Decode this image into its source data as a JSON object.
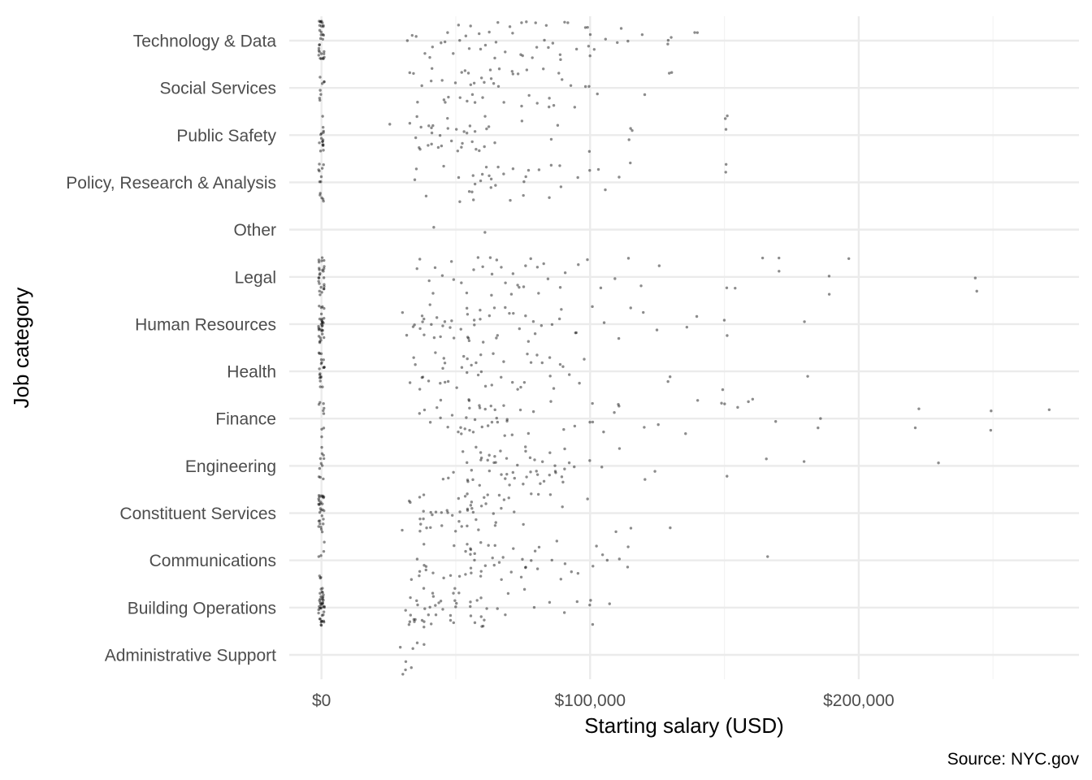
{
  "chart_data": {
    "type": "scatter",
    "title": "",
    "xlabel": "Starting salary (USD)",
    "ylabel": "Job category",
    "caption": "Source: NYC.gov",
    "xlim": [
      -12000,
      282000
    ],
    "x_ticks": [
      {
        "value": 0,
        "label": "$0"
      },
      {
        "value": 100000,
        "label": "$100,000"
      },
      {
        "value": 200000,
        "label": "$200,000"
      }
    ],
    "x_minor_ticks": [
      50000,
      150000,
      250000
    ],
    "categories": [
      "Administrative Support",
      "Building Operations",
      "Communications",
      "Constituent Services",
      "Engineering",
      "Finance",
      "Health",
      "Human Resources",
      "Legal",
      "Other",
      "Policy, Research & Analysis",
      "Public Safety",
      "Social Services",
      "Technology & Data"
    ],
    "grid": true,
    "legend": "none",
    "point_color": "#000000",
    "point_alpha": 0.45,
    "jitter": true,
    "series": [
      {
        "category": "Administrative Support",
        "values": [
          29000,
          30000,
          31000,
          32000,
          33000,
          33500,
          35000,
          38000
        ]
      },
      {
        "category": "Building Operations",
        "values": [
          0,
          0,
          0,
          0,
          0,
          0,
          0,
          0,
          0,
          0,
          0,
          0,
          0,
          0,
          0,
          0,
          0,
          0,
          0,
          0,
          0,
          0,
          0,
          0,
          0,
          0,
          0,
          0,
          0,
          0,
          0,
          0,
          0,
          0,
          0,
          0,
          0,
          0,
          0,
          0,
          32000,
          32500,
          33000,
          33500,
          34000,
          34500,
          35000,
          35500,
          36000,
          36500,
          37000,
          37500,
          38000,
          38500,
          39000,
          39500,
          40000,
          40500,
          41000,
          41500,
          42000,
          43000,
          44000,
          45000,
          46000,
          47000,
          48000,
          49000,
          50000,
          50000,
          50000,
          50000,
          50000,
          52000,
          55000,
          55000,
          56000,
          57000,
          58000,
          60000,
          60000,
          60000,
          60000,
          61000,
          62000,
          65000,
          68000,
          70000,
          75000,
          80000,
          85000,
          90000,
          95000,
          100000,
          100000,
          100000,
          107000
        ]
      },
      {
        "category": "Communications",
        "values": [
          0,
          0,
          0,
          0,
          0,
          0,
          0,
          33000,
          35000,
          36000,
          37000,
          38000,
          38000,
          38000,
          40000,
          42000,
          45000,
          48000,
          50000,
          52000,
          53000,
          54000,
          55000,
          55000,
          55000,
          55000,
          55000,
          56000,
          57000,
          58000,
          59000,
          60000,
          60000,
          61000,
          62000,
          63000,
          64000,
          65000,
          66000,
          67000,
          68000,
          70000,
          72000,
          74000,
          75000,
          75000,
          76000,
          78000,
          80000,
          80000,
          82000,
          85000,
          88000,
          90000,
          90000,
          92000,
          95000,
          100000,
          102000,
          104000,
          106000,
          110000,
          115000,
          115000,
          165000
        ]
      },
      {
        "category": "Constituent Services",
        "values": [
          0,
          0,
          0,
          0,
          0,
          0,
          0,
          0,
          0,
          0,
          0,
          0,
          0,
          0,
          0,
          0,
          0,
          0,
          0,
          0,
          0,
          0,
          0,
          0,
          0,
          0,
          0,
          0,
          0,
          30000,
          32000,
          34000,
          36000,
          37000,
          37000,
          37000,
          38000,
          38000,
          38000,
          39000,
          40000,
          41000,
          42000,
          43000,
          44000,
          45000,
          46000,
          47000,
          48000,
          49000,
          50000,
          51000,
          52000,
          53000,
          54000,
          55000,
          55000,
          55000,
          55000,
          55000,
          55000,
          55000,
          56000,
          57000,
          58000,
          59000,
          60000,
          61000,
          62000,
          63000,
          64000,
          65000,
          66000,
          67000,
          68000,
          70000,
          72000,
          75000,
          78000,
          80000,
          85000,
          90000,
          100000,
          110000,
          115000,
          130000
        ]
      },
      {
        "category": "Engineering",
        "values": [
          0,
          0,
          0,
          0,
          0,
          0,
          0,
          0,
          0,
          0,
          0,
          45000,
          48000,
          50000,
          52000,
          54000,
          55000,
          55000,
          55000,
          56000,
          57000,
          58000,
          59000,
          60000,
          60000,
          61000,
          62000,
          63000,
          64000,
          65000,
          65000,
          66000,
          67000,
          68000,
          69000,
          70000,
          70000,
          71000,
          72000,
          73000,
          74000,
          75000,
          75000,
          76000,
          77000,
          78000,
          79000,
          80000,
          80000,
          81000,
          82000,
          83000,
          84000,
          85000,
          86000,
          87000,
          88000,
          89000,
          90000,
          90000,
          91000,
          92000,
          95000,
          100000,
          105000,
          110000,
          120000,
          125000,
          150000,
          165000,
          180000,
          230000
        ]
      },
      {
        "category": "Finance",
        "values": [
          0,
          0,
          0,
          0,
          0,
          0,
          0,
          0,
          0,
          36000,
          38000,
          40000,
          42000,
          44000,
          45000,
          46000,
          48000,
          50000,
          51000,
          52000,
          53000,
          54000,
          55000,
          55000,
          55000,
          56000,
          57000,
          58000,
          59000,
          60000,
          60000,
          61000,
          62000,
          63000,
          64000,
          65000,
          65000,
          66000,
          67000,
          68000,
          69000,
          70000,
          72000,
          75000,
          78000,
          80000,
          85000,
          90000,
          95000,
          100000,
          100000,
          102000,
          105000,
          110000,
          110000,
          110000,
          120000,
          125000,
          135000,
          140000,
          150000,
          150000,
          155000,
          160000,
          160000,
          170000,
          185000,
          185000,
          222000,
          222000,
          250000,
          250000,
          270000
        ]
      },
      {
        "category": "Health",
        "values": [
          0,
          0,
          0,
          0,
          0,
          0,
          0,
          0,
          0,
          0,
          0,
          0,
          0,
          0,
          0,
          0,
          0,
          0,
          0,
          32000,
          34000,
          35000,
          36000,
          37000,
          38000,
          40000,
          42000,
          44000,
          45000,
          45000,
          46000,
          47000,
          48000,
          50000,
          52000,
          54000,
          55000,
          55000,
          56000,
          57000,
          58000,
          60000,
          60000,
          62000,
          64000,
          65000,
          66000,
          68000,
          70000,
          72000,
          74000,
          75000,
          76000,
          78000,
          80000,
          82000,
          84000,
          85000,
          86000,
          88000,
          90000,
          92000,
          95000,
          98000,
          130000,
          130000,
          150000,
          180000
        ]
      },
      {
        "category": "Human Resources",
        "values": [
          0,
          0,
          0,
          0,
          0,
          0,
          0,
          0,
          0,
          0,
          0,
          0,
          0,
          0,
          0,
          0,
          0,
          0,
          0,
          0,
          0,
          0,
          0,
          0,
          0,
          0,
          0,
          0,
          0,
          0,
          30000,
          32000,
          34000,
          35000,
          36000,
          37000,
          38000,
          38000,
          39000,
          40000,
          41000,
          42000,
          43000,
          44000,
          45000,
          46000,
          47000,
          48000,
          50000,
          52000,
          54000,
          55000,
          55000,
          55000,
          56000,
          57000,
          58000,
          60000,
          60000,
          60000,
          62000,
          64000,
          65000,
          66000,
          68000,
          70000,
          72000,
          74000,
          75000,
          76000,
          78000,
          80000,
          82000,
          85000,
          88000,
          90000,
          95000,
          95000,
          100000,
          105000,
          110000,
          115000,
          120000,
          125000,
          135000,
          140000,
          150000,
          150000,
          180000
        ]
      },
      {
        "category": "Legal",
        "values": [
          0,
          0,
          0,
          0,
          0,
          0,
          0,
          0,
          0,
          0,
          0,
          0,
          0,
          0,
          0,
          0,
          0,
          0,
          0,
          0,
          0,
          0,
          0,
          0,
          0,
          0,
          35000,
          37000,
          40000,
          42000,
          43000,
          45000,
          48000,
          50000,
          52000,
          55000,
          56000,
          58000,
          60000,
          62000,
          63000,
          64000,
          65000,
          66000,
          68000,
          70000,
          72000,
          73000,
          74000,
          75000,
          76000,
          78000,
          80000,
          80000,
          82000,
          85000,
          88000,
          90000,
          95000,
          100000,
          105000,
          110000,
          115000,
          120000,
          125000,
          150000,
          155000,
          165000,
          170000,
          170000,
          190000,
          190000,
          197000,
          243000,
          243000
        ]
      },
      {
        "category": "Other",
        "values": [
          42000,
          61000
        ]
      },
      {
        "category": "Policy, Research & Analysis",
        "values": [
          0,
          0,
          0,
          0,
          0,
          0,
          0,
          0,
          0,
          0,
          0,
          0,
          0,
          34000,
          36000,
          38000,
          45000,
          50000,
          52000,
          54000,
          55000,
          56000,
          57000,
          58000,
          60000,
          60000,
          61000,
          62000,
          63000,
          64000,
          65000,
          66000,
          68000,
          70000,
          72000,
          75000,
          75000,
          76000,
          78000,
          80000,
          85000,
          85000,
          88000,
          90000,
          95000,
          100000,
          102000,
          105000,
          110000,
          115000,
          150000,
          150000
        ]
      },
      {
        "category": "Public Safety",
        "values": [
          0,
          0,
          0,
          0,
          0,
          0,
          0,
          0,
          0,
          0,
          0,
          0,
          0,
          0,
          0,
          0,
          26000,
          32000,
          34000,
          35000,
          36000,
          37000,
          38000,
          40000,
          40000,
          40000,
          42000,
          42000,
          42000,
          43000,
          44000,
          45000,
          46000,
          47000,
          48000,
          50000,
          50000,
          51000,
          52000,
          53000,
          54000,
          55000,
          56000,
          57000,
          58000,
          59000,
          60000,
          61000,
          62000,
          63000,
          65000,
          75000,
          85000,
          88000,
          100000,
          115000,
          115000,
          115000,
          150000,
          150000,
          150000
        ]
      },
      {
        "category": "Social Services",
        "values": [
          0,
          0,
          0,
          0,
          0,
          0,
          0,
          0,
          33000,
          35000,
          36000,
          38000,
          40000,
          42000,
          44000,
          45000,
          46000,
          48000,
          50000,
          52000,
          53000,
          54000,
          55000,
          55000,
          55000,
          56000,
          57000,
          58000,
          60000,
          60000,
          61000,
          62000,
          63000,
          64000,
          65000,
          66000,
          68000,
          70000,
          72000,
          74000,
          75000,
          76000,
          78000,
          80000,
          82000,
          84000,
          85000,
          86000,
          88000,
          90000,
          92000,
          95000,
          98000,
          100000,
          102000,
          120000,
          130000,
          130000
        ]
      },
      {
        "category": "Technology & Data",
        "values": [
          0,
          0,
          0,
          0,
          0,
          0,
          0,
          0,
          0,
          0,
          0,
          0,
          0,
          0,
          0,
          0,
          0,
          0,
          0,
          0,
          0,
          0,
          0,
          0,
          0,
          0,
          0,
          0,
          0,
          0,
          33000,
          34000,
          36000,
          38000,
          40000,
          42000,
          44000,
          45000,
          46000,
          48000,
          50000,
          52000,
          54000,
          55000,
          56000,
          58000,
          60000,
          60000,
          62000,
          64000,
          65000,
          66000,
          68000,
          70000,
          72000,
          74000,
          75000,
          75000,
          76000,
          78000,
          80000,
          80000,
          82000,
          84000,
          85000,
          86000,
          88000,
          90000,
          90000,
          92000,
          95000,
          98000,
          100000,
          100000,
          100000,
          100000,
          102000,
          105000,
          110000,
          112000,
          115000,
          120000,
          130000,
          130000,
          130000,
          140000,
          140000
        ]
      }
    ]
  }
}
